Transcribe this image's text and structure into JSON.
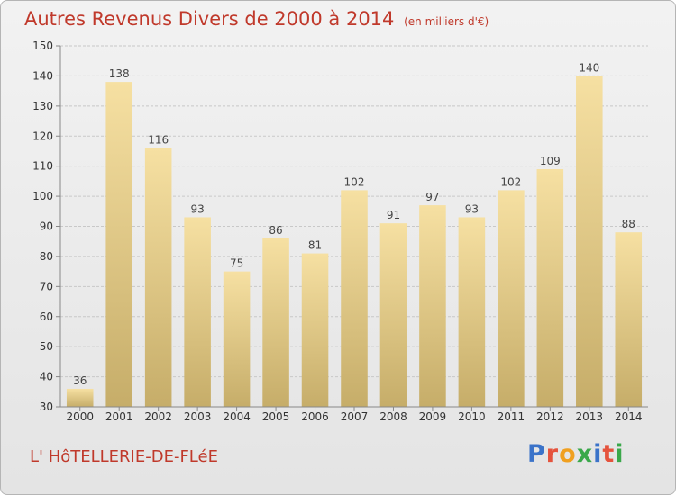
{
  "header": {
    "title": "Autres Revenus Divers de 2000 à 2014",
    "unit": "(en milliers d'€)"
  },
  "footer": {
    "place": "L' HôTELLERIE-DE-FLéE",
    "brand": "Proxiti",
    "brand_colors": [
      "#3b73c9",
      "#e5533d",
      "#f0a020",
      "#3aa84a",
      "#3b73c9",
      "#e5533d",
      "#3aa84a"
    ]
  },
  "colors": {
    "title": "#c0392b",
    "bar_light": "#f6e0a2",
    "bar_dark": "#c6ad69",
    "grid": "#c8c8c8"
  },
  "chart_data": {
    "type": "bar",
    "title": "Autres Revenus Divers de 2000 à 2014",
    "subtitle": "(en milliers d'€)",
    "categories": [
      "2000",
      "2001",
      "2002",
      "2003",
      "2004",
      "2005",
      "2006",
      "2007",
      "2008",
      "2009",
      "2010",
      "2011",
      "2012",
      "2013",
      "2014"
    ],
    "values": [
      36,
      138,
      116,
      93,
      75,
      86,
      81,
      102,
      91,
      97,
      93,
      102,
      109,
      140,
      88
    ],
    "data_labels": [
      "36",
      "138",
      "116",
      "93",
      "75",
      "86",
      "81",
      "102",
      "91",
      "97",
      "93",
      "102",
      "109",
      "140",
      "88"
    ],
    "ylim": [
      30,
      150
    ],
    "yticks": [
      30,
      40,
      50,
      60,
      70,
      80,
      90,
      100,
      110,
      120,
      130,
      140,
      150
    ],
    "grid": true
  }
}
